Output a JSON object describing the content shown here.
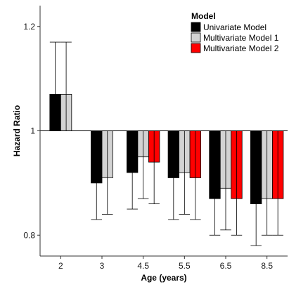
{
  "chart_data": {
    "type": "bar",
    "xlabel": "Age (years)",
    "ylabel": "Hazard Ratio",
    "categories": [
      "2",
      "3",
      "4.5",
      "5.5",
      "6.5",
      "8.5"
    ],
    "ylim": [
      0.76,
      1.24
    ],
    "yticks": [
      0.8,
      1,
      1.2
    ],
    "ytick_labels": [
      "0.8",
      "1",
      "1.2"
    ],
    "baseline": 1,
    "legend": {
      "title": "Model",
      "placement": "top-right"
    },
    "series": [
      {
        "name": "Univariate Model",
        "color": "#000000",
        "values": [
          1.07,
          0.9,
          0.92,
          0.91,
          0.87,
          0.86
        ],
        "upper": [
          1.17,
          1.0,
          1.0,
          1.0,
          1.0,
          1.0
        ],
        "lower": [
          1.0,
          0.83,
          0.85,
          0.83,
          0.8,
          0.78
        ]
      },
      {
        "name": "Multivariate Model 1",
        "color": "#d3d3d3",
        "values": [
          1.07,
          0.91,
          0.95,
          0.92,
          0.89,
          0.87
        ],
        "upper": [
          1.17,
          1.0,
          1.0,
          1.0,
          1.0,
          1.0
        ],
        "lower": [
          1.0,
          0.84,
          0.87,
          0.84,
          0.81,
          0.8
        ]
      },
      {
        "name": "Multivariate Model 2",
        "color": "#ff0000",
        "values": [
          null,
          null,
          0.94,
          0.91,
          0.87,
          0.87
        ],
        "upper": [
          null,
          null,
          1.0,
          1.0,
          1.0,
          1.0
        ],
        "lower": [
          null,
          null,
          0.86,
          0.83,
          0.8,
          0.8
        ]
      }
    ]
  }
}
